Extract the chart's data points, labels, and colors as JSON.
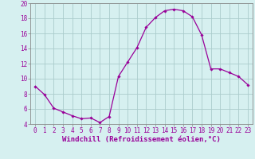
{
  "hours": [
    0,
    1,
    2,
    3,
    4,
    5,
    6,
    7,
    8,
    9,
    10,
    11,
    12,
    13,
    14,
    15,
    16,
    17,
    18,
    19,
    20,
    21,
    22,
    23
  ],
  "values": [
    9.0,
    7.9,
    6.1,
    5.6,
    5.1,
    4.7,
    4.8,
    4.2,
    5.0,
    10.3,
    12.2,
    14.1,
    16.8,
    18.1,
    19.0,
    19.2,
    19.0,
    18.2,
    15.8,
    11.3,
    11.3,
    10.8,
    10.3,
    9.2
  ],
  "line_color": "#990099",
  "marker": "D",
  "marker_size": 1.8,
  "line_width": 0.9,
  "bg_color": "#d6f0f0",
  "grid_color": "#aacccc",
  "xlabel": "Windchill (Refroidissement éolien,°C)",
  "xlabel_fontsize": 6.5,
  "ylim": [
    4,
    20
  ],
  "xlim": [
    -0.5,
    23.5
  ],
  "yticks": [
    4,
    6,
    8,
    10,
    12,
    14,
    16,
    18,
    20
  ],
  "xticks": [
    0,
    1,
    2,
    3,
    4,
    5,
    6,
    7,
    8,
    9,
    10,
    11,
    12,
    13,
    14,
    15,
    16,
    17,
    18,
    19,
    20,
    21,
    22,
    23
  ],
  "tick_fontsize": 5.5,
  "axis_color": "#990099",
  "spine_color": "#888888"
}
